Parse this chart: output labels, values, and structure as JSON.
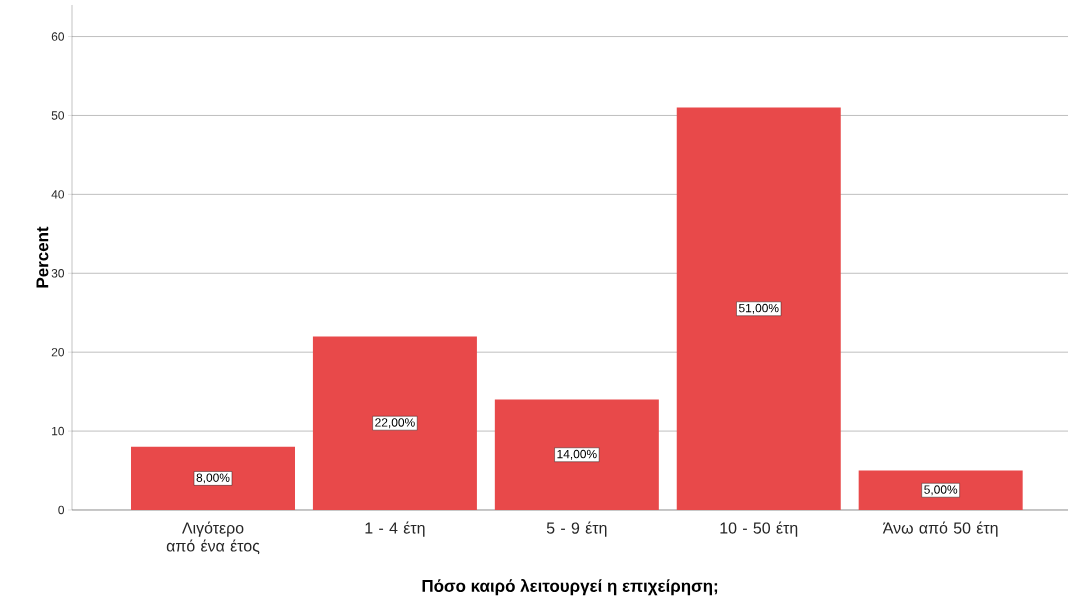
{
  "chart_data": {
    "type": "bar",
    "xlabel": "Πόσο καιρό λειτουργεί η επιχείρηση;",
    "ylabel": "Percent",
    "categories": [
      "Λιγότερο από ένα έτος",
      "1 - 4 έτη",
      "5 - 9 έτη",
      "10 - 50 έτη",
      "Άνω από 50 έτη"
    ],
    "values": [
      8,
      22,
      14,
      51,
      5
    ],
    "value_labels": [
      "8,00%",
      "22,00%",
      "14,00%",
      "51,00%",
      "5,00%"
    ],
    "color": "#e8494a",
    "ylim": [
      0,
      64
    ],
    "yticks": [
      0,
      10,
      20,
      30,
      40,
      50,
      60
    ],
    "grid": "y"
  }
}
